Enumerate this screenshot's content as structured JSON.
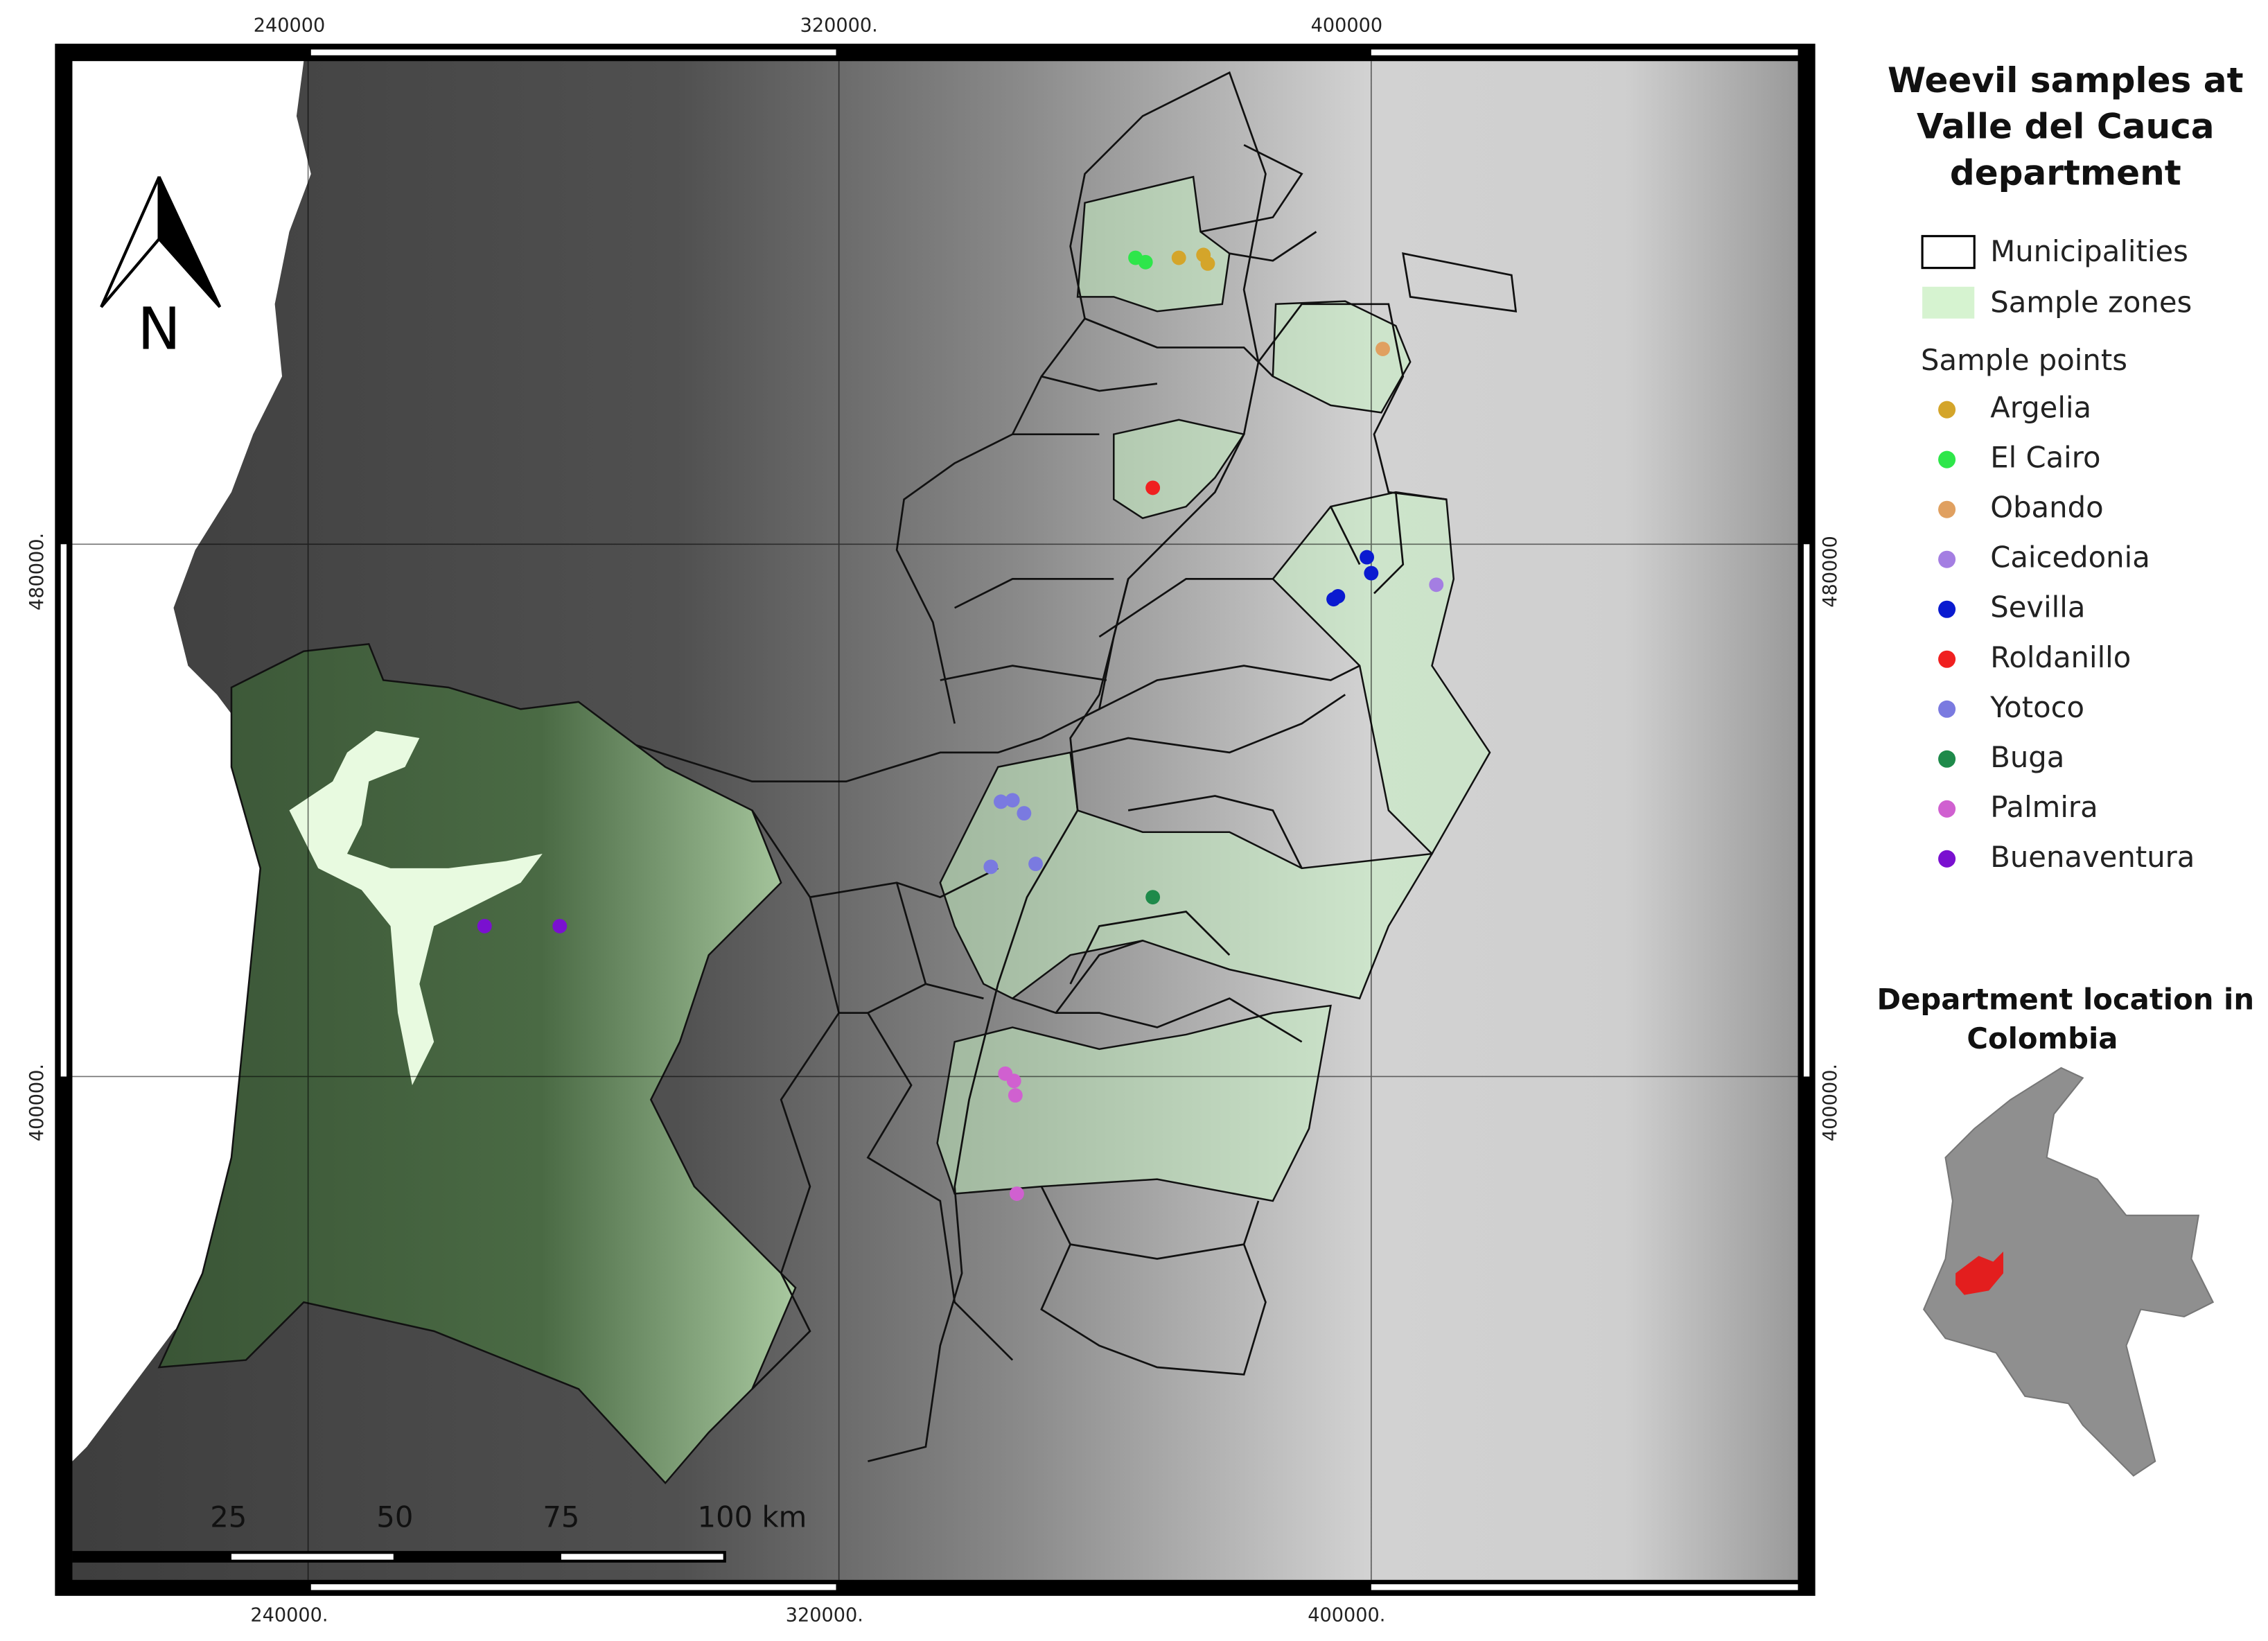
{
  "map": {
    "grid_labels": {
      "top": [
        "240000",
        "320000.",
        "400000"
      ],
      "bottom": [
        "240000.",
        "320000.",
        "400000."
      ],
      "left": [
        "480000.",
        "400000."
      ],
      "right": [
        "480000",
        "400000."
      ]
    },
    "north_label": "N",
    "scale_labels": [
      "25",
      "50",
      "75",
      "100 km"
    ]
  },
  "legend": {
    "title_lines": [
      "Weevil samples at",
      "Valle del Cauca",
      "department"
    ],
    "layers": [
      {
        "label": "Municipalities"
      },
      {
        "label": "Sample zones"
      }
    ],
    "points_title": "Sample points",
    "items": [
      {
        "label": "Argelia",
        "color": "#d4a52a"
      },
      {
        "label": "El Cairo",
        "color": "#2ee64a"
      },
      {
        "label": "Obando",
        "color": "#e0a060"
      },
      {
        "label": "Caicedonia",
        "color": "#a47ee2"
      },
      {
        "label": "Sevilla",
        "color": "#0a1ad0"
      },
      {
        "label": "Roldanillo",
        "color": "#f02020"
      },
      {
        "label": "Yotoco",
        "color": "#7a7ae0"
      },
      {
        "label": "Buga",
        "color": "#1e8a4a"
      },
      {
        "label": "Palmira",
        "color": "#d060d0"
      },
      {
        "label": "Buenaventura",
        "color": "#7a10d0"
      }
    ]
  },
  "inset": {
    "title_lines": [
      "Department location in",
      "Colombia"
    ]
  }
}
